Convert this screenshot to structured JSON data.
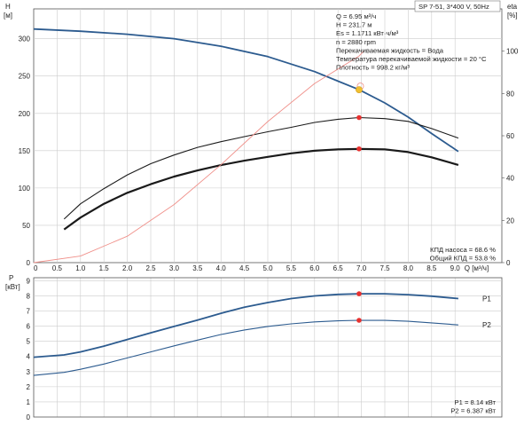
{
  "chart_data": [
    {
      "type": "line",
      "title": "SP 7-51, 3*400 V, 50Hz",
      "xlabel": "Q [м³/ч]",
      "ylabel": "H [м]",
      "y2label": "eta [%]",
      "xlim": [
        0,
        10
      ],
      "ylim": [
        0,
        340
      ],
      "y2lim": [
        0,
        120
      ],
      "xticks": [
        "0",
        "0.5",
        "1.0",
        "1.5",
        "2.0",
        "2.5",
        "3.0",
        "3.5",
        "4.0",
        "4.5",
        "5.0",
        "5.5",
        "6.0",
        "6.5",
        "7.0",
        "7.5",
        "8.0",
        "8.5",
        "9.0",
        "Q"
      ],
      "yticks": [
        "0",
        "50",
        "100",
        "150",
        "200",
        "250",
        "300"
      ],
      "y2ticks": [
        "0",
        "20",
        "40",
        "60",
        "80",
        "100"
      ],
      "grid": true,
      "info_lines": [
        "Q = 6.95 м³/ч",
        "H = 231.7 м",
        "Es = 1.1711 кВт·ч/м³",
        "n = 2880 rpm",
        "Перекачиваемая жидкость = Вода",
        "Температура перекачиваемой жидкости = 20 °C",
        "Плотность = 998.2 кг/м³"
      ],
      "efficiency_labels": [
        "КПД насоса = 68.6 %",
        "Общий КПД = 53.8 %"
      ],
      "series": [
        {
          "axis": "left",
          "color": "#2c5b8f",
          "x": [
            0,
            1,
            2,
            3,
            4,
            5,
            6,
            6.95,
            7.5,
            8,
            8.5,
            9.07
          ],
          "values": [
            313,
            310,
            306,
            300,
            290,
            276,
            256,
            231.7,
            214,
            195,
            173,
            149
          ]
        },
        {
          "axis": "right",
          "color": "#1a1a1a",
          "x": [
            0.65,
            1,
            1.5,
            2,
            2.5,
            3,
            3.5,
            4,
            4.5,
            5,
            5.5,
            6,
            6.5,
            6.95,
            7.5,
            8,
            8.5,
            9.07
          ],
          "values": [
            15.7,
            21.3,
            27.8,
            33.0,
            37.1,
            40.7,
            43.6,
            46.1,
            48.2,
            50.0,
            51.7,
            52.9,
            53.6,
            53.8,
            53.6,
            52.3,
            49.8,
            46.2
          ]
        },
        {
          "axis": "right",
          "color": "#1a1a1a",
          "x": [
            0.65,
            1,
            1.5,
            2,
            2.5,
            3,
            3.5,
            4,
            4.5,
            5,
            5.5,
            6,
            6.5,
            6.95,
            7.5,
            8,
            8.5,
            9.07
          ],
          "values": [
            20.6,
            27.8,
            35.0,
            41.5,
            46.8,
            50.9,
            54.5,
            57.2,
            59.6,
            61.9,
            64.0,
            66.3,
            67.8,
            68.6,
            68.1,
            66.8,
            63.4,
            58.9
          ]
        },
        {
          "axis": "right",
          "color": "#f0908a",
          "x": [
            0,
            1,
            2,
            3,
            4,
            5,
            6,
            6.95,
            7.05
          ],
          "values": [
            0,
            3.1,
            12.5,
            27.5,
            46.3,
            66.7,
            84.7,
            97.7,
            100
          ]
        }
      ],
      "markers": [
        {
          "axis": "left",
          "x": 6.95,
          "y": 231.7,
          "color": "#f0c030"
        },
        {
          "axis": "right",
          "x": 6.95,
          "y": 53.8,
          "color": "#e8312f"
        },
        {
          "axis": "right",
          "x": 6.95,
          "y": 68.6,
          "color": "#e8312f"
        }
      ]
    },
    {
      "type": "line",
      "ylabel": "P [кВт]",
      "xlim": [
        0,
        10
      ],
      "ylim": [
        0,
        9.2
      ],
      "yticks": [
        "0",
        "1",
        "2",
        "3",
        "4",
        "5",
        "6",
        "7",
        "8",
        "9"
      ],
      "grid": true,
      "power_labels": [
        "P1 = 8.14 кВт",
        "P2 = 6.387 кВт"
      ],
      "series": [
        {
          "name": "P1",
          "color": "#2c5b8f",
          "x": [
            0,
            0.65,
            1,
            1.5,
            2,
            2.5,
            3,
            3.5,
            4,
            4.5,
            5,
            5.5,
            6,
            6.5,
            6.95,
            7.5,
            8,
            8.5,
            9.07
          ],
          "values": [
            3.95,
            4.1,
            4.3,
            4.68,
            5.12,
            5.56,
            5.98,
            6.4,
            6.85,
            7.25,
            7.56,
            7.82,
            8.0,
            8.1,
            8.14,
            8.14,
            8.08,
            7.98,
            7.82
          ]
        },
        {
          "name": "P2",
          "color": "#2c5b8f",
          "x": [
            0,
            0.65,
            1,
            1.5,
            2,
            2.5,
            3,
            3.5,
            4,
            4.5,
            5,
            5.5,
            6,
            6.5,
            6.95,
            7.5,
            8,
            8.5,
            9.07
          ],
          "values": [
            2.75,
            2.95,
            3.15,
            3.5,
            3.9,
            4.3,
            4.7,
            5.08,
            5.45,
            5.75,
            5.98,
            6.15,
            6.28,
            6.35,
            6.387,
            6.38,
            6.32,
            6.22,
            6.08
          ]
        }
      ],
      "markers": [
        {
          "x": 6.95,
          "y": 8.14,
          "color": "#e8312f"
        },
        {
          "x": 6.95,
          "y": 6.387,
          "color": "#e8312f"
        }
      ]
    }
  ]
}
